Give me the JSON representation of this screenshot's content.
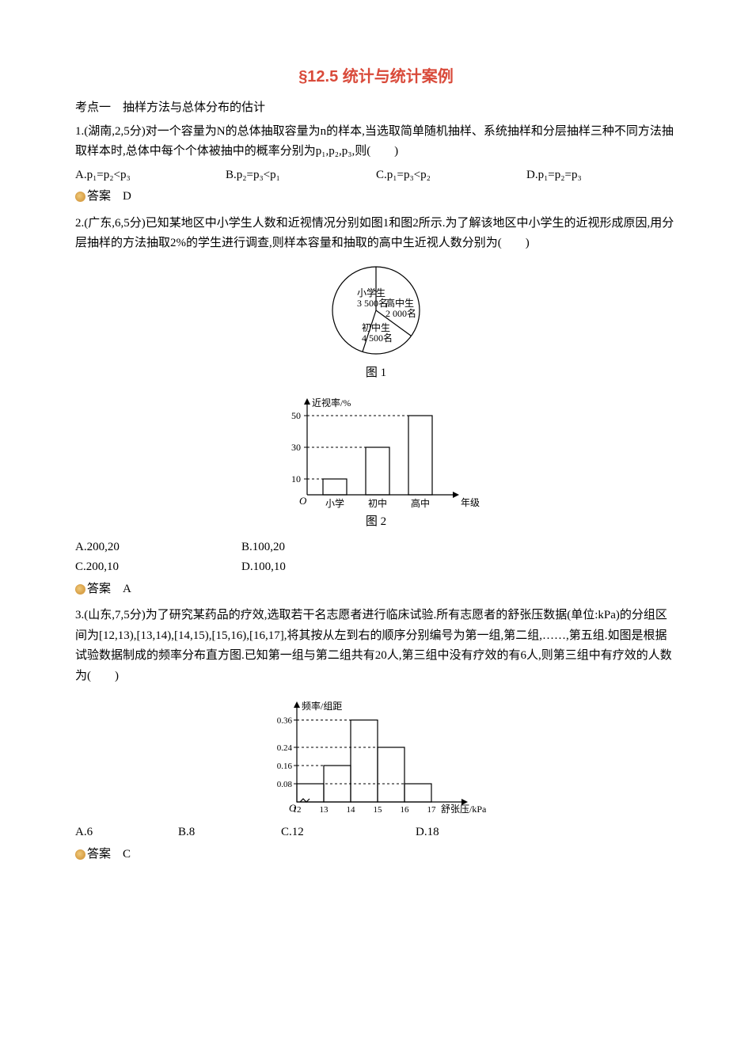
{
  "title": "§12.5 统计与统计案例",
  "topic1": "考点一　抽样方法与总体分布的估计",
  "q1": {
    "text": "1.(湖南,2,5分)对一个容量为N的总体抽取容量为n的样本,当选取简单随机抽样、系统抽样和分层抽样三种不同方法抽取样本时,总体中每个个体被抽中的概率分别为p₁,p₂,p₃,则(　　)",
    "choiceA": "A.p₁=p₂<p₃",
    "choiceB": "B.p₂=p₃<p₁",
    "choiceC": "C.p₁=p₃<p₂",
    "choiceD": "D.p₁=p₂=p₃",
    "answer_label": "答案　D"
  },
  "q2": {
    "text": "2.(广东,6,5分)已知某地区中小学生人数和近视情况分别如图1和图2所示.为了解该地区中小学生的近视形成原因,用分层抽样的方法抽取2%的学生进行调查,则样本容量和抽取的高中生近视人数分别为(　　)",
    "pie": {
      "colors": {
        "line": "#000000",
        "bg": "#ffffff"
      },
      "slices": [
        {
          "label1": "小学生",
          "label2": "3 500名",
          "fraction": 0.35
        },
        {
          "label1": "高中生",
          "label2": "2 000名",
          "fraction": 0.2
        },
        {
          "label1": "初中生",
          "label2": "4 500名",
          "fraction": 0.45
        }
      ],
      "caption": "图 1"
    },
    "bar": {
      "ylabel": "近视率/%",
      "xlabel": "年级",
      "yticks": [
        10,
        30,
        50
      ],
      "categories": [
        "小学",
        "初中",
        "高中"
      ],
      "values": [
        10,
        30,
        50
      ],
      "colors": {
        "line": "#000000",
        "bg": "#ffffff"
      },
      "caption": "图 2"
    },
    "choiceA": "A.200,20",
    "choiceB": "B.100,20",
    "choiceC": "C.200,10",
    "choiceD": "D.100,10",
    "answer_label": "答案　A"
  },
  "q3": {
    "text": "3.(山东,7,5分)为了研究某药品的疗效,选取若干名志愿者进行临床试验.所有志愿者的舒张压数据(单位:kPa)的分组区间为[12,13),[13,14),[14,15),[15,16),[16,17],将其按从左到右的顺序分别编号为第一组,第二组,……,第五组.如图是根据试验数据制成的频率分布直方图.已知第一组与第二组共有20人,第三组中没有疗效的有6人,则第三组中有疗效的人数为(　　)",
    "hist": {
      "ylabel": "频率/组距",
      "xlabel": "舒张压/kPa",
      "yticks": [
        0.08,
        0.16,
        0.24,
        0.36
      ],
      "x_edges": [
        12,
        13,
        14,
        15,
        16,
        17
      ],
      "heights": [
        0.08,
        0.16,
        0.36,
        0.24,
        0.08
      ],
      "colors": {
        "line": "#000000",
        "bg": "#ffffff"
      }
    },
    "choiceA": "A.6",
    "choiceB": "B.8",
    "choiceC": "C.12",
    "choiceD": "D.18",
    "answer_label": "答案　C"
  }
}
